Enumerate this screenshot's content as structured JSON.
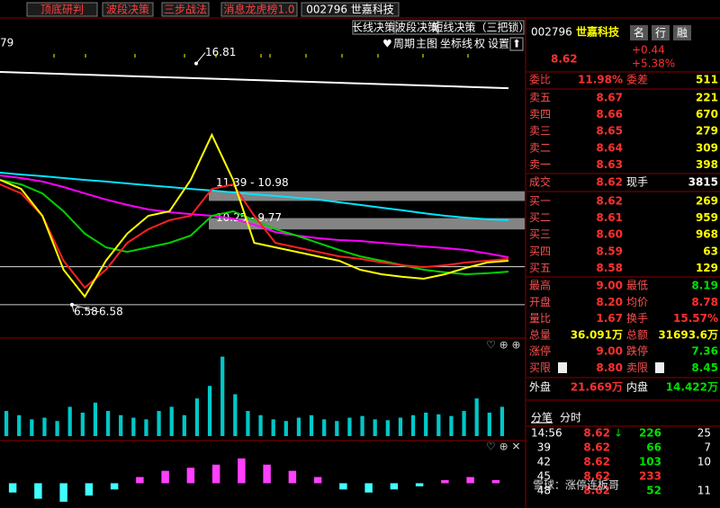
{
  "toolbar": {
    "items": [
      "顶底研判",
      "波段决策",
      "三步战法",
      "消息龙虎榜1.0",
      "002796 世嘉科技"
    ]
  },
  "chart_header": {
    "corner": "79",
    "strategies": [
      "长线决策",
      "波段决策",
      "短线决策（三把锁）"
    ],
    "menu": [
      "周期",
      "主图",
      "坐标线",
      "权",
      "设置"
    ]
  },
  "chart_data": [
    {
      "type": "line",
      "ylim": [
        5.2,
        17.9
      ],
      "series": [
        {
          "color": "#ffffff",
          "values": [
            16.45,
            15.76
          ]
        },
        {
          "color": "#00e5ff",
          "values": [
            12.18,
            12.1,
            12.03,
            11.95,
            11.87,
            11.8,
            11.72,
            11.64,
            11.57,
            11.49,
            11.42,
            11.34,
            11.26,
            11.19,
            11.11,
            11.04,
            10.92,
            10.81,
            10.69,
            10.58,
            10.46,
            10.35,
            10.27,
            10.2,
            10.16
          ]
        },
        {
          "color": "#ff00ff",
          "values": [
            12.06,
            11.95,
            11.8,
            11.57,
            11.3,
            11.04,
            10.81,
            10.62,
            10.5,
            10.42,
            10.35,
            10.23,
            9.97,
            9.66,
            9.51,
            9.4,
            9.32,
            9.28,
            9.2,
            9.13,
            9.05,
            8.98,
            8.9,
            8.75,
            8.59
          ]
        },
        {
          "color": "#00d000",
          "values": [
            11.87,
            11.68,
            11.3,
            10.54,
            9.59,
            9.01,
            8.82,
            9.01,
            9.2,
            9.51,
            10.35,
            10.54,
            10.16,
            9.78,
            9.51,
            9.2,
            8.9,
            8.63,
            8.44,
            8.25,
            8.06,
            7.95,
            7.87,
            7.91,
            7.98
          ]
        },
        {
          "color": "#ff2020",
          "values": [
            11.68,
            11.3,
            10.35,
            8.44,
            7.3,
            8.06,
            9.2,
            9.78,
            10.16,
            10.35,
            11.49,
            11.68,
            10.35,
            9.2,
            9.01,
            8.82,
            8.63,
            8.52,
            8.37,
            8.25,
            8.17,
            8.25,
            8.37,
            8.44,
            8.52
          ]
        },
        {
          "color": "#ffff00",
          "values": [
            11.87,
            11.49,
            10.35,
            8.06,
            6.92,
            8.44,
            9.59,
            10.35,
            10.54,
            11.87,
            13.78,
            11.87,
            9.2,
            9.01,
            8.82,
            8.63,
            8.44,
            8.06,
            7.87,
            7.76,
            7.68,
            7.87,
            8.14,
            8.37,
            8.44
          ]
        }
      ],
      "hlines": [
        8.19,
        6.58
      ],
      "zones": [
        {
          "label": "11.39 - 10.98",
          "top": 11.39,
          "bottom": 10.98
        },
        {
          "label": "10.25 - 9.77",
          "top": 10.25,
          "bottom": 9.77
        }
      ],
      "annotations": [
        {
          "text": "16.81",
          "value": 16.81
        },
        {
          "text": "6.58",
          "value": 6.58
        },
        {
          "text": "6.58",
          "value": 6.58
        }
      ]
    },
    {
      "type": "bar",
      "ylim": [
        0,
        100
      ],
      "color": "#00c8c8",
      "values": [
        30,
        25,
        20,
        22,
        18,
        35,
        28,
        40,
        30,
        25,
        22,
        20,
        30,
        35,
        25,
        45,
        60,
        95,
        50,
        30,
        25,
        20,
        18,
        22,
        25,
        20,
        18,
        22,
        24,
        20,
        19,
        22,
        25,
        28,
        26,
        24,
        30,
        45,
        28,
        35
      ]
    },
    {
      "type": "bar",
      "ylim": [
        -8,
        10
      ],
      "colors": [
        "#ff40ff",
        "#40ffff"
      ],
      "values": [
        -3,
        -5,
        -6,
        -4,
        -2,
        2,
        4,
        5,
        6,
        8,
        6,
        4,
        2,
        -2,
        -3,
        -2,
        -1,
        1,
        2,
        1
      ]
    }
  ],
  "quote": {
    "code": "002796",
    "name": "世嘉科技",
    "buttons": [
      "名",
      "行",
      "融"
    ],
    "price": "8.62",
    "change": "+0.44",
    "change_pct": "+5.38%",
    "ratio": [
      "委比",
      "11.98%",
      "委差",
      "511"
    ],
    "asks": [
      [
        "卖五",
        "8.67",
        "221"
      ],
      [
        "卖四",
        "8.66",
        "670"
      ],
      [
        "卖三",
        "8.65",
        "279"
      ],
      [
        "卖二",
        "8.64",
        "309"
      ],
      [
        "卖一",
        "8.63",
        "398"
      ]
    ],
    "trade": [
      "成交",
      "8.62",
      "现手",
      "3815"
    ],
    "bids": [
      [
        "买一",
        "8.62",
        "269"
      ],
      [
        "买二",
        "8.61",
        "959"
      ],
      [
        "买三",
        "8.60",
        "968"
      ],
      [
        "买四",
        "8.59",
        "63"
      ],
      [
        "买五",
        "8.58",
        "129"
      ]
    ],
    "stats": [
      [
        "最高",
        "9.00",
        "最低",
        "8.19"
      ],
      [
        "开盘",
        "8.20",
        "均价",
        "8.78"
      ],
      [
        "量比",
        "1.67",
        "换手",
        "15.57%"
      ],
      [
        "总量",
        "36.091万",
        "总额",
        "31693.6万"
      ],
      [
        "涨停",
        "9.00",
        "跌停",
        "7.36"
      ],
      [
        "买限",
        "8.80",
        "卖限",
        "8.45"
      ]
    ],
    "outer": [
      "外盘",
      "21.669万",
      "内盘",
      "14.422万"
    ],
    "tabs": [
      "分笔",
      "分时"
    ],
    "ticks": [
      [
        "14:56",
        "8.62",
        "226",
        "25"
      ],
      [
        "39",
        "8.62",
        "66",
        "7"
      ],
      [
        "42",
        "8.62",
        "103",
        "10"
      ],
      [
        "45",
        "8.62",
        "233"
      ],
      [
        "48",
        "8.62",
        "52",
        "11"
      ]
    ]
  },
  "watermark": "雪球：涨停连板哥"
}
